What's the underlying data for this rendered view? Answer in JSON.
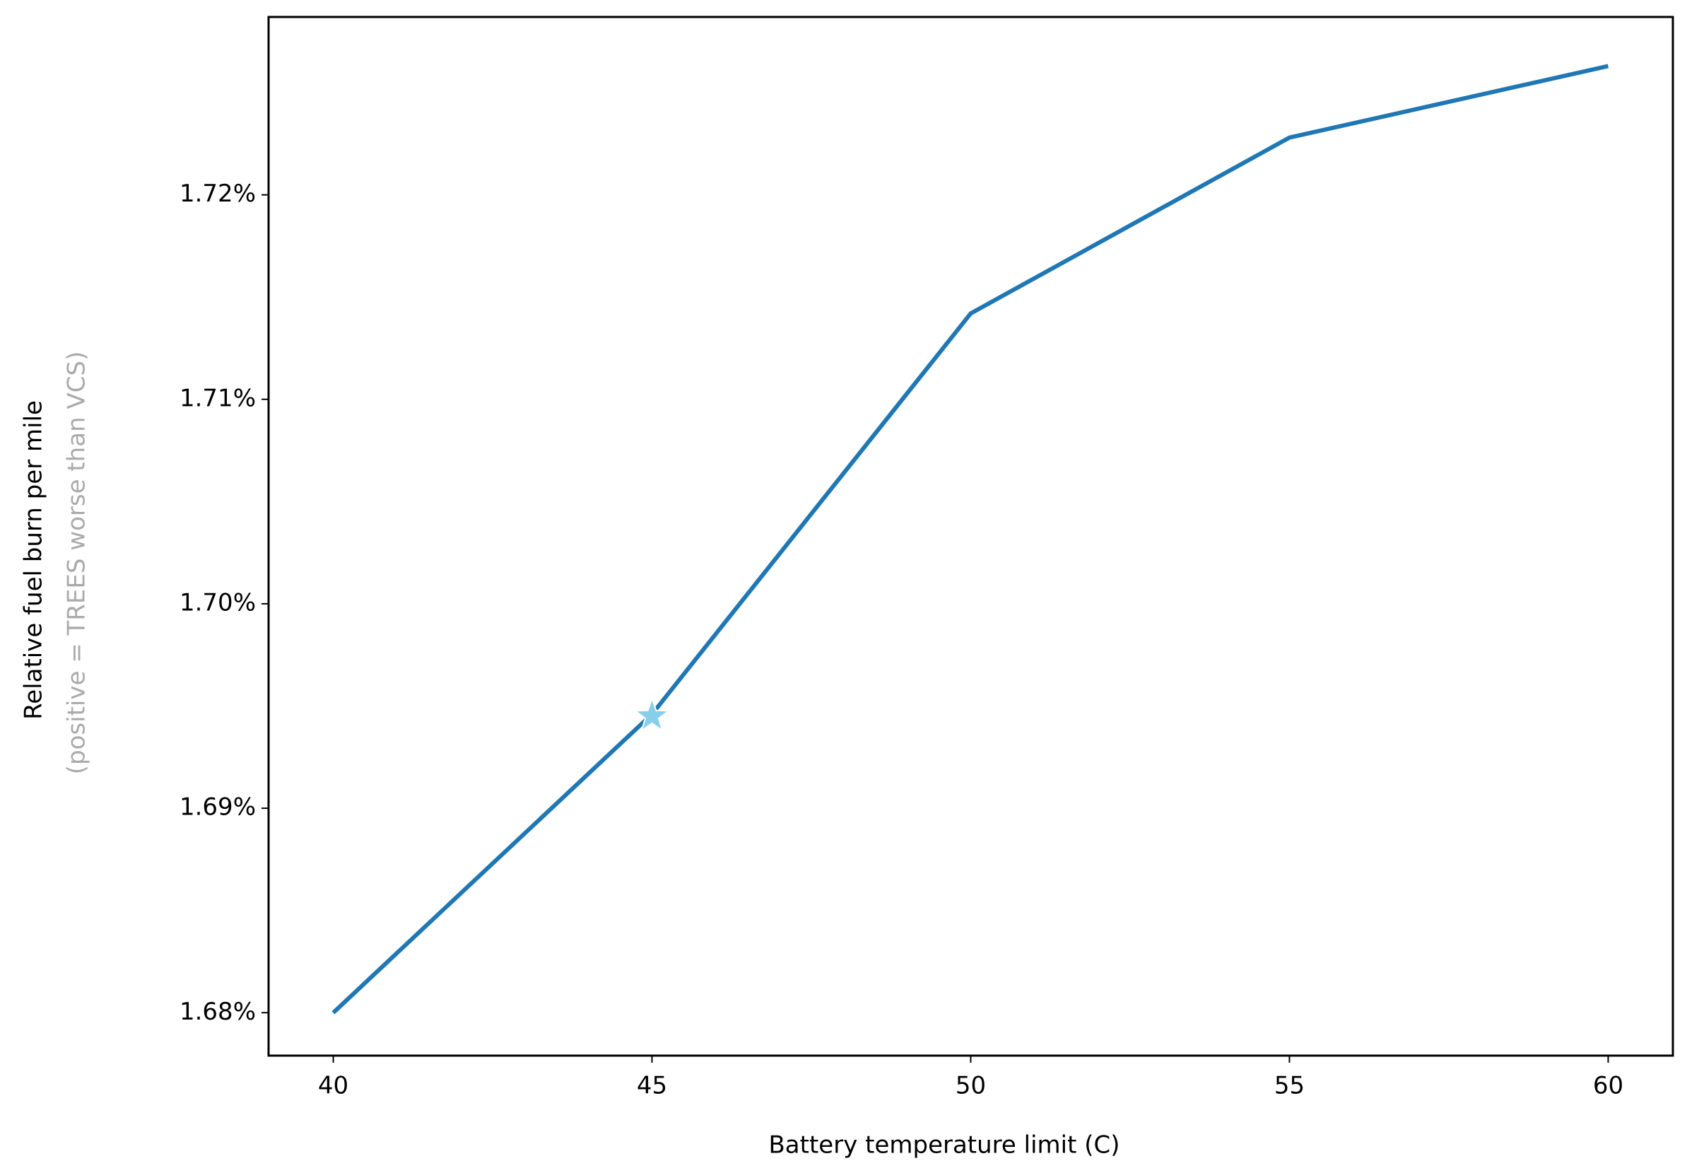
{
  "chart_data": {
    "type": "line",
    "x_label": "Battery temperature limit (C)",
    "y_label": "Relative fuel burn per mile",
    "y_label_note": "(positive = TREES worse than VCS)",
    "x": [
      40,
      45,
      50,
      55,
      60
    ],
    "series": [
      {
        "color": "#1f77b4",
        "values": [
          1.68,
          1.6946,
          1.7142,
          1.7228,
          1.7263
        ]
      }
    ],
    "highlight": {
      "x": 45,
      "y": 1.6945,
      "color": "#87ceeb",
      "marker": "star"
    },
    "xlim": [
      38.985,
      61.015
    ],
    "ylim": [
      1.6779,
      1.7287
    ],
    "xticks": [
      40,
      45,
      50,
      55,
      60
    ],
    "yticks": [
      {
        "value": 1.68,
        "label": "1.68%"
      },
      {
        "value": 1.69,
        "label": "1.69%"
      },
      {
        "value": 1.7,
        "label": "1.70%"
      },
      {
        "value": 1.71,
        "label": "1.71%"
      },
      {
        "value": 1.72,
        "label": "1.72%"
      }
    ],
    "label_note_color": "#aaaaaa"
  }
}
